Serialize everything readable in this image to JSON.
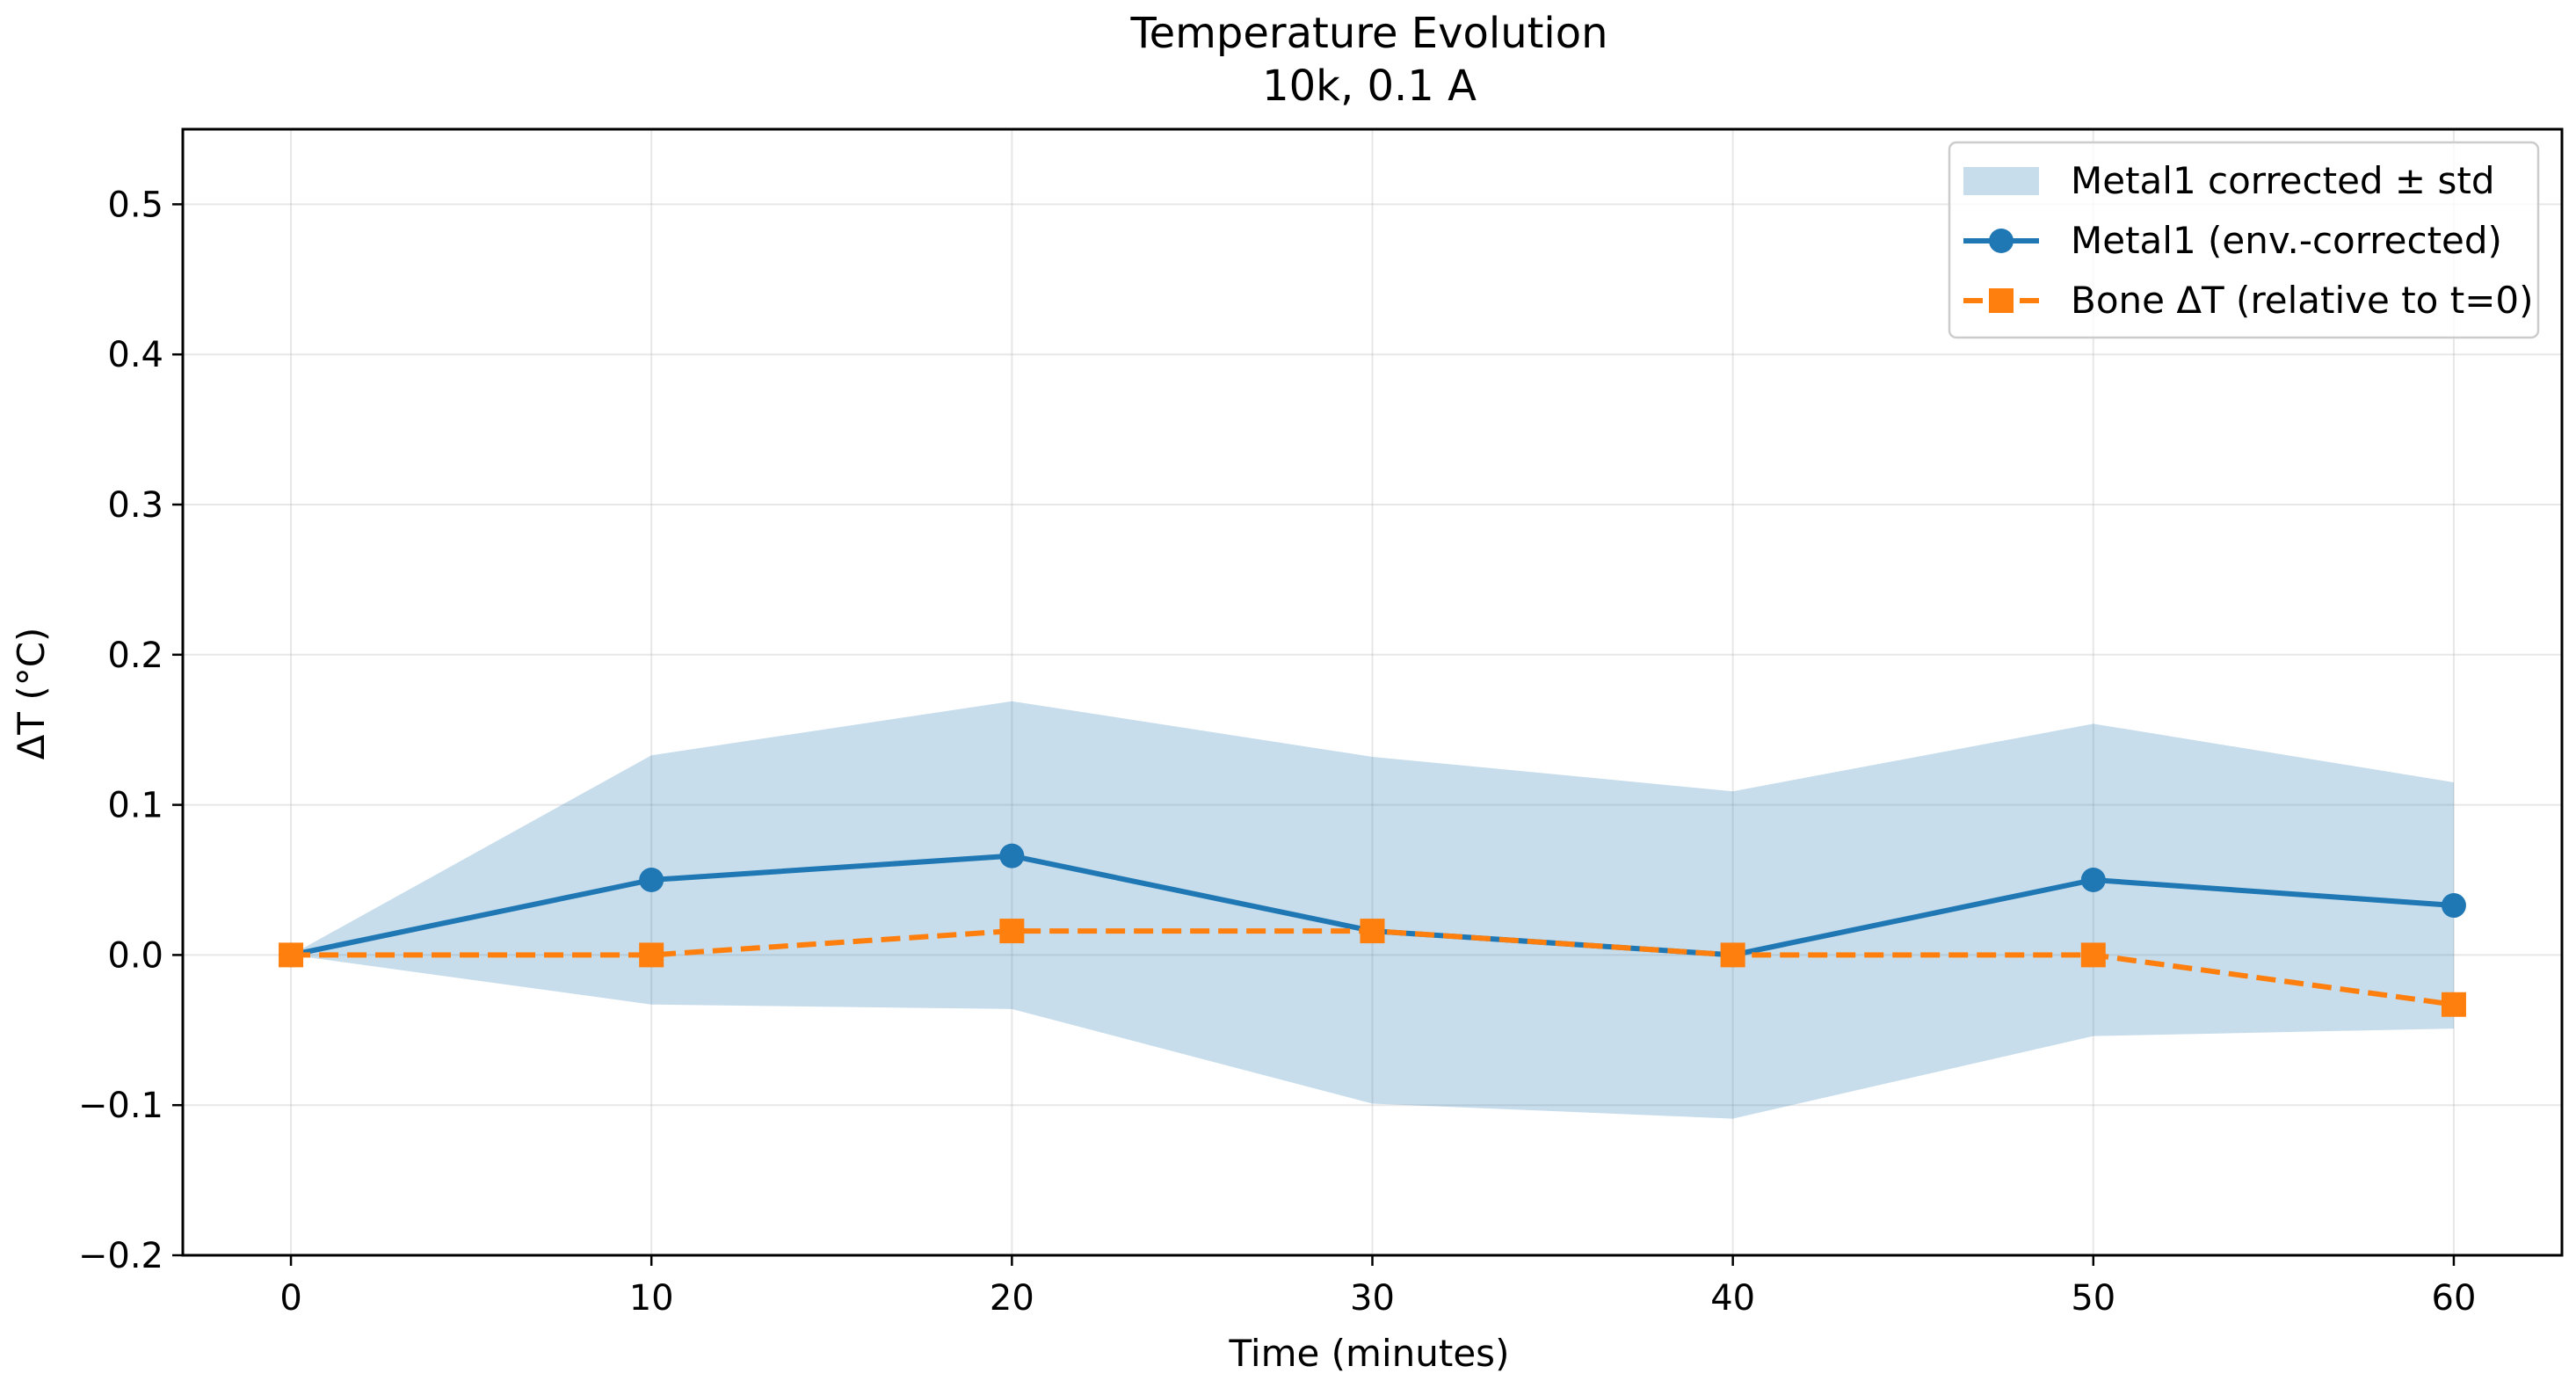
{
  "chart_data": {
    "type": "line",
    "title": "Temperature Evolution",
    "subtitle": "10k, 0.1 A",
    "xlabel": "Time (minutes)",
    "ylabel": "ΔT (°C)",
    "xlim": [
      -3,
      63
    ],
    "ylim": [
      -0.2,
      0.55
    ],
    "xticks": [
      0,
      10,
      20,
      30,
      40,
      50,
      60
    ],
    "xtick_labels": [
      "0",
      "10",
      "20",
      "30",
      "40",
      "50",
      "60"
    ],
    "yticks": [
      -0.2,
      -0.1,
      0.0,
      0.1,
      0.2,
      0.3,
      0.4,
      0.5
    ],
    "ytick_labels": [
      "−0.2",
      "−0.1",
      "0.0",
      "0.1",
      "0.2",
      "0.3",
      "0.4",
      "0.5"
    ],
    "grid": true,
    "legend_position": "top-right",
    "x": [
      0,
      10,
      20,
      30,
      40,
      50,
      60
    ],
    "band": {
      "name": "Metal1 corrected ± std",
      "color": "#1f77b4",
      "opacity": 0.25,
      "upper": [
        0.0,
        0.133,
        0.169,
        0.132,
        0.109,
        0.154,
        0.115
      ],
      "lower": [
        0.0,
        -0.033,
        -0.036,
        -0.099,
        -0.109,
        -0.054,
        -0.049
      ]
    },
    "series": [
      {
        "name": "Metal1 (env.-corrected)",
        "color": "#1f77b4",
        "marker": "circle",
        "linestyle": "solid",
        "values": [
          0.0,
          0.05,
          0.066,
          0.016,
          0.0,
          0.05,
          0.033
        ]
      },
      {
        "name": "Bone ΔT (relative to t=0)",
        "color": "#ff7f0e",
        "marker": "square",
        "linestyle": "dashed",
        "values": [
          0.0,
          0.0,
          0.016,
          0.016,
          0.0,
          0.0,
          -0.033
        ]
      }
    ]
  }
}
